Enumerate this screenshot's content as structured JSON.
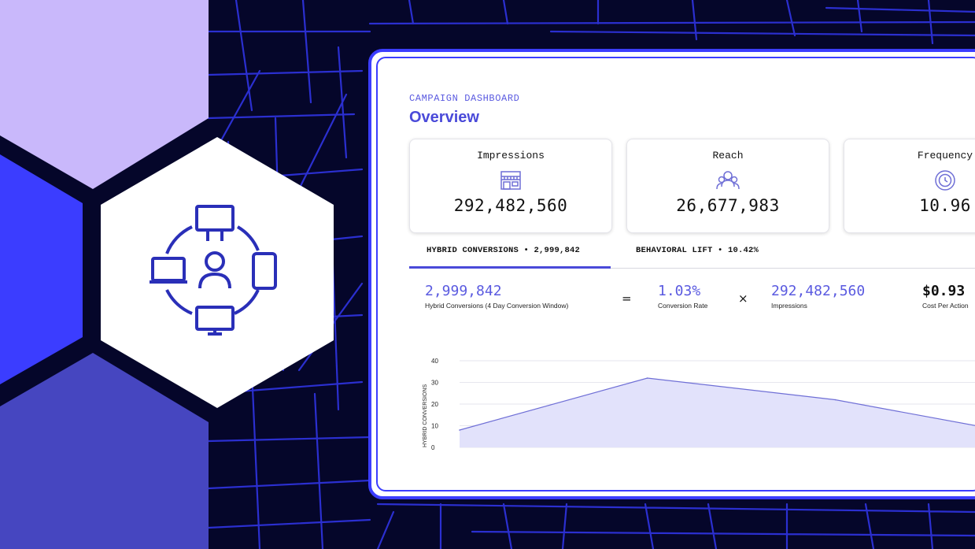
{
  "dashboard": {
    "eyebrow": "CAMPAIGN DASHBOARD",
    "title": "Overview"
  },
  "cards": [
    {
      "label": "Impressions",
      "value": "292,482,560",
      "icon": "storefront-icon"
    },
    {
      "label": "Reach",
      "value": "26,677,983",
      "icon": "people-icon"
    },
    {
      "label": "Frequency",
      "value": "10.96",
      "icon": "clock-cycle-icon"
    }
  ],
  "tabs": [
    {
      "label": "HYBRID CONVERSIONS • 2,999,842",
      "active": true
    },
    {
      "label": "BEHAVIORAL LIFT • 10.42%",
      "active": false
    }
  ],
  "formula": {
    "conversions": {
      "value": "2,999,842",
      "caption": "Hybrid Conversions (4 Day Conversion Window)"
    },
    "equals": "=",
    "rate": {
      "value": "1.03%",
      "caption": "Conversion Rate"
    },
    "times": "×",
    "impressions": {
      "value": "292,482,560",
      "caption": "Impressions"
    },
    "cpa": {
      "value": "$0.93",
      "caption": "Cost Per Action"
    }
  },
  "chart_data": {
    "type": "area",
    "ylabel": "HYBRID CONVERSIONS",
    "ylim": [
      0,
      40
    ],
    "yticks": [
      "0",
      "10",
      "20",
      "30",
      "40"
    ],
    "grid": true,
    "series": [
      {
        "values": [
          8,
          32,
          22,
          6
        ],
        "x": [
          0,
          1,
          2,
          3
        ]
      }
    ],
    "colors": {
      "fill": "#e2e2fb",
      "line": "#6f6fd6"
    }
  },
  "theme": {
    "accent": "#4a4ad9",
    "panel_border": "#3b3dff",
    "background": "#05062a",
    "hex_light": "#c9b8fb",
    "hex_blue": "#3b3dff",
    "hex_mid": "#4646c0",
    "icon_color": "#2a2fb8"
  },
  "hero_icon": "multi-device-network-icon"
}
